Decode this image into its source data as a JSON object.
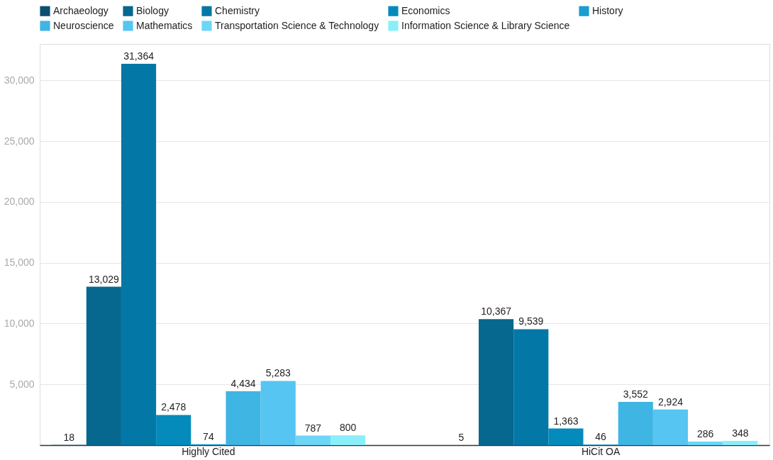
{
  "chart_data": {
    "type": "bar",
    "categories": [
      "Highly Cited",
      "HiCit OA"
    ],
    "series": [
      {
        "name": "Archaeology",
        "color": "#0b4f71",
        "values": [
          18,
          5
        ],
        "value_labels": [
          "18",
          "5"
        ]
      },
      {
        "name": "Biology",
        "color": "#06678f",
        "values": [
          13029,
          10367
        ],
        "value_labels": [
          "13,029",
          "10,367"
        ]
      },
      {
        "name": "Chemistry",
        "color": "#0378a6",
        "values": [
          31364,
          9539
        ],
        "value_labels": [
          "31,364",
          "9,539"
        ]
      },
      {
        "name": "Economics",
        "color": "#048bbb",
        "values": [
          2478,
          1363
        ],
        "value_labels": [
          "2,478",
          "1,363"
        ]
      },
      {
        "name": "History",
        "color": "#1a9dcf",
        "values": [
          74,
          46
        ],
        "value_labels": [
          "74",
          "46"
        ]
      },
      {
        "name": "Neuroscience",
        "color": "#3eb5e3",
        "values": [
          4434,
          3552
        ],
        "value_labels": [
          "4,434",
          "3,552"
        ]
      },
      {
        "name": "Mathematics",
        "color": "#56c5f2",
        "values": [
          5283,
          2924
        ],
        "value_labels": [
          "5,283",
          "2,924"
        ]
      },
      {
        "name": "Transportation Science & Technology",
        "color": "#6dd6f7",
        "values": [
          787,
          286
        ],
        "value_labels": [
          "787",
          "286"
        ]
      },
      {
        "name": "Information Science & Library Science",
        "color": "#8aeffa",
        "values": [
          800,
          348
        ],
        "value_labels": [
          "800",
          "348"
        ]
      }
    ],
    "ylim": [
      0,
      33000
    ],
    "yticks": [
      {
        "value": 0,
        "label": null
      },
      {
        "value": 5000,
        "label": "5,000"
      },
      {
        "value": 10000,
        "label": "10,000"
      },
      {
        "value": 15000,
        "label": "15,000"
      },
      {
        "value": 20000,
        "label": "20,000"
      },
      {
        "value": 25000,
        "label": "25,000"
      },
      {
        "value": 30000,
        "label": "30,000"
      }
    ],
    "grid": "y",
    "legend": "top"
  }
}
